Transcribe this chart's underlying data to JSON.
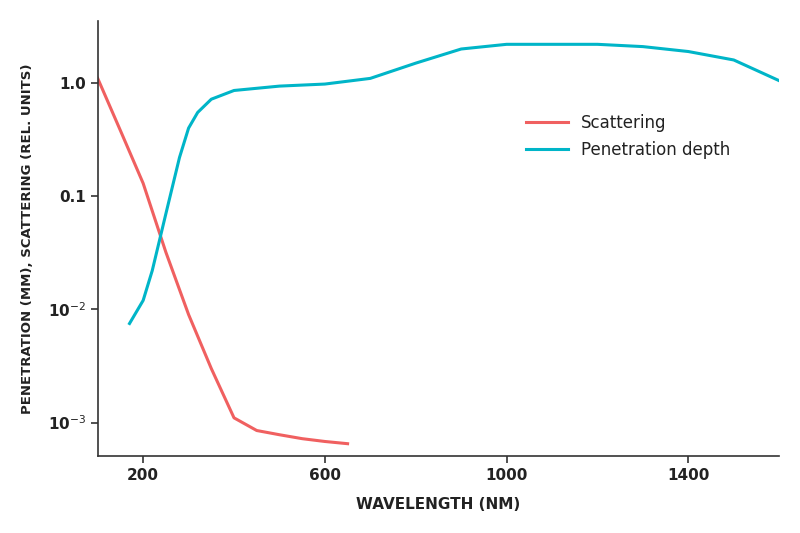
{
  "title": "",
  "xlabel": "WAVELENGTH (NM)",
  "ylabel": "PENETRATION (MM), SCATTERING (REL. UNITS)",
  "xlim": [
    100,
    1600
  ],
  "ylim_log_min": -3.3,
  "ylim_log_max": 0.55,
  "background_color": "#ffffff",
  "scattering_color": "#f06060",
  "penetration_color": "#00b5c8",
  "legend_labels": [
    "Scattering",
    "Penetration depth"
  ],
  "scattering_x": [
    100,
    150,
    200,
    250,
    300,
    350,
    400,
    450,
    500,
    550,
    600,
    650
  ],
  "scattering_y": [
    1.1,
    0.38,
    0.13,
    0.032,
    0.009,
    0.003,
    0.0011,
    0.00085,
    0.00078,
    0.00072,
    0.00068,
    0.00065
  ],
  "penetration_x": [
    170,
    200,
    220,
    250,
    280,
    300,
    320,
    350,
    400,
    500,
    600,
    700,
    800,
    900,
    1000,
    1100,
    1200,
    1300,
    1400,
    1500,
    1600
  ],
  "penetration_y": [
    0.0075,
    0.012,
    0.022,
    0.07,
    0.22,
    0.4,
    0.55,
    0.72,
    0.86,
    0.94,
    0.98,
    1.1,
    1.5,
    2.0,
    2.2,
    2.2,
    2.2,
    2.1,
    1.9,
    1.6,
    1.05
  ],
  "xtick_vals": [
    200,
    600,
    1000,
    1400
  ],
  "xtick_labels": [
    "200",
    "600",
    "1000",
    "1400"
  ],
  "ytick_vals": [
    1.0,
    0.1,
    0.01,
    0.001
  ],
  "ytick_labels": [
    "1.0",
    "0.1",
    "10$^{-2}$",
    "10$^{-3}$"
  ],
  "xlabel_fontsize": 11,
  "ylabel_fontsize": 9.5,
  "tick_fontsize": 11,
  "legend_fontsize": 12,
  "linewidth": 2.2
}
